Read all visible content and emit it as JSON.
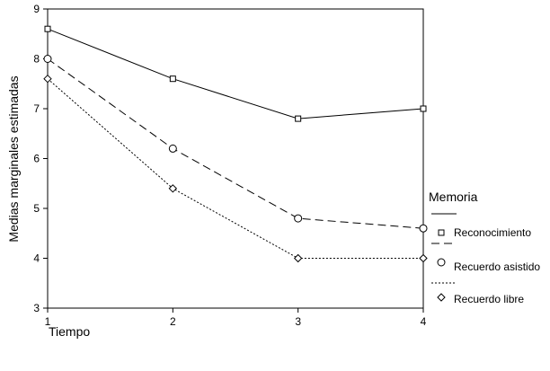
{
  "chart_data": {
    "type": "line",
    "xlabel": "Tiempo",
    "ylabel": "Medias marginales estimadas",
    "xlim": [
      1,
      4
    ],
    "ylim": [
      3,
      9
    ],
    "x_ticks": [
      1,
      2,
      3,
      4
    ],
    "y_ticks": [
      3,
      4,
      5,
      6,
      7,
      8,
      9
    ],
    "x": [
      1,
      2,
      3,
      4
    ],
    "legend_title": "Memoria",
    "legend_placement": "right",
    "grid": false,
    "series": [
      {
        "name": "Reconocimiento",
        "values": [
          8.6,
          7.6,
          6.8,
          7.0
        ],
        "marker": "square",
        "line": "solid",
        "color": "#000000"
      },
      {
        "name": "Recuerdo asistido",
        "values": [
          8.0,
          6.2,
          4.8,
          4.6
        ],
        "marker": "circle",
        "line": "dashed",
        "color": "#000000"
      },
      {
        "name": "Recuerdo libre",
        "values": [
          7.6,
          5.4,
          4.0,
          4.0
        ],
        "marker": "diamond",
        "line": "dotted",
        "color": "#000000"
      }
    ]
  }
}
